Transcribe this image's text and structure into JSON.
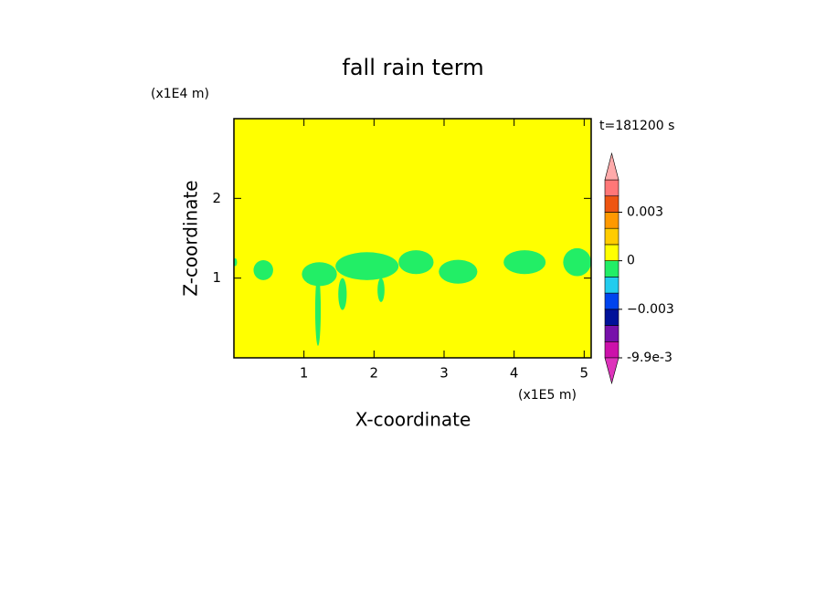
{
  "chart_data": {
    "type": "contour",
    "title": "fall rain term",
    "x_label": "X-coordinate",
    "y_label": "Z-coordinate",
    "x_unit": "(x1E5 m)",
    "y_unit": "(x1E4 m)",
    "time_label": "t=181200 s",
    "xlim": [
      0,
      5.1
    ],
    "ylim": [
      0,
      3
    ],
    "xticks": [
      1,
      2,
      3,
      4,
      5
    ],
    "yticks": [
      1,
      2
    ],
    "background_color": "#ffff00",
    "region_color": "#22ee66",
    "regions": [
      {
        "x": 0.02,
        "z": 1.2,
        "width": 0.05,
        "height": 0.1
      },
      {
        "x": 0.42,
        "z": 1.1,
        "width": 0.28,
        "height": 0.25
      },
      {
        "x": 1.22,
        "z": 1.05,
        "width": 0.5,
        "height": 0.3
      },
      {
        "x": 1.2,
        "z": 0.6,
        "width": 0.08,
        "height": 0.9
      },
      {
        "x": 1.9,
        "z": 1.15,
        "width": 0.9,
        "height": 0.35
      },
      {
        "x": 1.55,
        "z": 0.8,
        "width": 0.12,
        "height": 0.4
      },
      {
        "x": 2.1,
        "z": 0.85,
        "width": 0.1,
        "height": 0.3
      },
      {
        "x": 2.6,
        "z": 1.2,
        "width": 0.5,
        "height": 0.3
      },
      {
        "x": 3.2,
        "z": 1.08,
        "width": 0.55,
        "height": 0.3
      },
      {
        "x": 4.15,
        "z": 1.2,
        "width": 0.6,
        "height": 0.3
      },
      {
        "x": 4.9,
        "z": 1.2,
        "width": 0.4,
        "height": 0.35
      }
    ],
    "colorbar": {
      "levels": [
        -0.0099,
        -0.007,
        -0.004,
        -0.003,
        -0.002,
        -0.001,
        0,
        0.001,
        0.002,
        0.003,
        0.004,
        0.005
      ],
      "colors": [
        "#cc11aa",
        "#7711aa",
        "#001199",
        "#0044ee",
        "#22ccee",
        "#22ee66",
        "#ffff00",
        "#ffcc00",
        "#ff9900",
        "#ee5511",
        "#ff7777"
      ],
      "under_color": "#dd33bb",
      "over_color": "#ffaaaa",
      "ticks": [
        {
          "value": 0.003,
          "label": "0.003"
        },
        {
          "value": 0,
          "label": "0"
        },
        {
          "value": -0.003,
          "label": "−0.003"
        },
        {
          "value": -0.0099,
          "label": "-9.9e-3"
        }
      ]
    }
  }
}
